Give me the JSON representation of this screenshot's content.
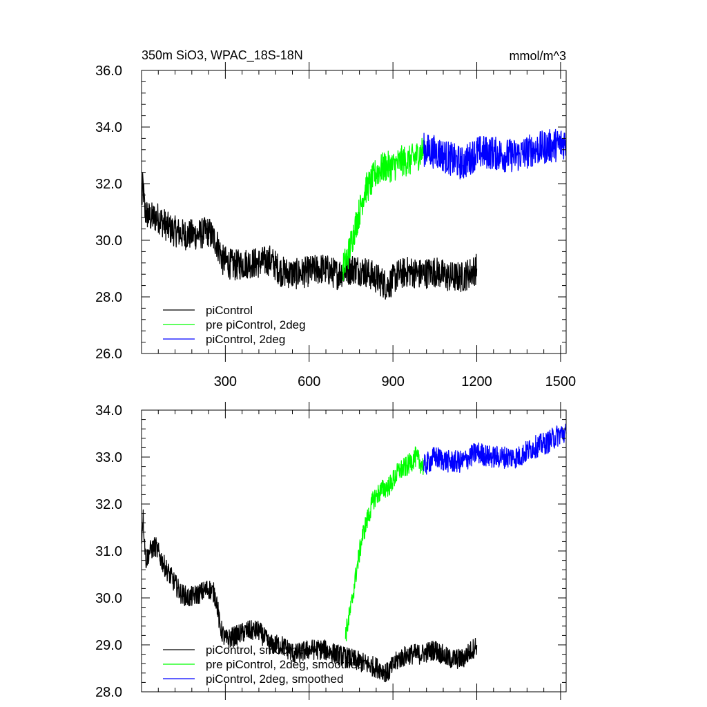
{
  "chart_data": [
    {
      "type": "line",
      "title": "350m SiO3, WPAC_18S-18N",
      "units": "mmol/m^3",
      "xlabel": "",
      "ylabel": "",
      "xlim": [
        0,
        1520
      ],
      "ylim": [
        26.0,
        36.0
      ],
      "x_ticks": [
        300,
        600,
        900,
        1200,
        1500
      ],
      "x_tick_labels": [
        "300",
        "600",
        "900",
        "1200",
        "1500"
      ],
      "y_ticks": [
        26.0,
        28.0,
        30.0,
        32.0,
        34.0,
        36.0
      ],
      "y_tick_labels": [
        "26.0",
        "28.0",
        "30.0",
        "32.0",
        "34.0",
        "36.0"
      ],
      "legend": {
        "position": "bottom-left"
      },
      "series": [
        {
          "name": "piControl",
          "color": "#000000",
          "noise": 0.55,
          "points": [
            [
              1,
              31.3
            ],
            [
              5,
              32.0
            ],
            [
              12,
              31.0
            ],
            [
              30,
              30.8
            ],
            [
              60,
              30.8
            ],
            [
              100,
              30.4
            ],
            [
              150,
              30.2
            ],
            [
              200,
              30.2
            ],
            [
              240,
              30.3
            ],
            [
              270,
              29.9
            ],
            [
              290,
              29.3
            ],
            [
              330,
              29.1
            ],
            [
              380,
              29.2
            ],
            [
              420,
              29.2
            ],
            [
              460,
              29.3
            ],
            [
              500,
              28.9
            ],
            [
              550,
              28.8
            ],
            [
              600,
              28.9
            ],
            [
              650,
              29.0
            ],
            [
              700,
              28.8
            ],
            [
              720,
              28.9
            ],
            [
              760,
              29.0
            ],
            [
              800,
              28.9
            ],
            [
              850,
              28.6
            ],
            [
              880,
              28.4
            ],
            [
              920,
              28.8
            ],
            [
              960,
              28.9
            ],
            [
              1000,
              28.8
            ],
            [
              1050,
              28.9
            ],
            [
              1100,
              28.7
            ],
            [
              1150,
              28.7
            ],
            [
              1200,
              29.0
            ]
          ]
        },
        {
          "name": "pre piControl, 2deg",
          "color": "#00ff00",
          "noise": 0.55,
          "points": [
            [
              720,
              29.0
            ],
            [
              740,
              29.5
            ],
            [
              760,
              30.3
            ],
            [
              780,
              31.0
            ],
            [
              800,
              31.8
            ],
            [
              820,
              32.0
            ],
            [
              840,
              32.4
            ],
            [
              870,
              32.6
            ],
            [
              900,
              32.6
            ],
            [
              930,
              32.8
            ],
            [
              960,
              32.8
            ],
            [
              990,
              33.0
            ],
            [
              1010,
              33.2
            ]
          ]
        },
        {
          "name": "piControl, 2deg",
          "color": "#0000ff",
          "noise": 0.6,
          "points": [
            [
              1010,
              33.2
            ],
            [
              1060,
              33.1
            ],
            [
              1100,
              32.9
            ],
            [
              1150,
              32.7
            ],
            [
              1200,
              33.1
            ],
            [
              1250,
              33.1
            ],
            [
              1300,
              33.0
            ],
            [
              1350,
              33.0
            ],
            [
              1400,
              33.2
            ],
            [
              1450,
              33.3
            ],
            [
              1500,
              33.4
            ],
            [
              1520,
              33.5
            ]
          ]
        }
      ]
    },
    {
      "type": "line",
      "title": "",
      "xlabel": "",
      "ylabel": "",
      "xlim": [
        0,
        1520
      ],
      "ylim": [
        28.0,
        34.0
      ],
      "x_ticks": [
        300,
        600,
        900,
        1200,
        1500
      ],
      "x_tick_labels": [],
      "y_ticks": [
        28.0,
        29.0,
        30.0,
        31.0,
        32.0,
        33.0,
        34.0
      ],
      "y_tick_labels": [
        "28.0",
        "29.0",
        "30.0",
        "31.0",
        "32.0",
        "33.0",
        "34.0"
      ],
      "legend": {
        "position": "bottom-left"
      },
      "series": [
        {
          "name": "piControl, smoothed",
          "color": "#000000",
          "noise": 0.22,
          "points": [
            [
              1,
              31.3
            ],
            [
              5,
              31.8
            ],
            [
              15,
              30.8
            ],
            [
              30,
              31.0
            ],
            [
              50,
              31.1
            ],
            [
              80,
              30.7
            ],
            [
              110,
              30.4
            ],
            [
              140,
              30.1
            ],
            [
              170,
              30.0
            ],
            [
              210,
              30.1
            ],
            [
              240,
              30.2
            ],
            [
              260,
              30.1
            ],
            [
              270,
              29.9
            ],
            [
              280,
              29.4
            ],
            [
              300,
              29.1
            ],
            [
              340,
              29.2
            ],
            [
              380,
              29.3
            ],
            [
              420,
              29.3
            ],
            [
              460,
              29.0
            ],
            [
              500,
              29.0
            ],
            [
              550,
              28.8
            ],
            [
              600,
              28.9
            ],
            [
              650,
              28.9
            ],
            [
              700,
              28.8
            ],
            [
              750,
              28.7
            ],
            [
              800,
              28.6
            ],
            [
              850,
              28.5
            ],
            [
              880,
              28.4
            ],
            [
              920,
              28.7
            ],
            [
              960,
              28.8
            ],
            [
              1000,
              28.8
            ],
            [
              1050,
              28.9
            ],
            [
              1100,
              28.7
            ],
            [
              1150,
              28.7
            ],
            [
              1200,
              29.0
            ]
          ]
        },
        {
          "name": "pre piControl, 2deg, smoothed",
          "color": "#00ff00",
          "noise": 0.22,
          "points": [
            [
              730,
              29.2
            ],
            [
              750,
              29.8
            ],
            [
              770,
              30.6
            ],
            [
              790,
              31.3
            ],
            [
              810,
              31.7
            ],
            [
              830,
              32.1
            ],
            [
              860,
              32.3
            ],
            [
              890,
              32.4
            ],
            [
              920,
              32.7
            ],
            [
              950,
              32.8
            ],
            [
              980,
              33.0
            ],
            [
              1010,
              32.8
            ]
          ]
        },
        {
          "name": "piControl, 2deg, smoothed",
          "color": "#0000ff",
          "noise": 0.24,
          "points": [
            [
              1010,
              32.8
            ],
            [
              1050,
              33.0
            ],
            [
              1100,
              32.9
            ],
            [
              1150,
              32.9
            ],
            [
              1200,
              33.1
            ],
            [
              1250,
              33.0
            ],
            [
              1300,
              33.0
            ],
            [
              1350,
              33.0
            ],
            [
              1400,
              33.2
            ],
            [
              1450,
              33.3
            ],
            [
              1500,
              33.5
            ],
            [
              1520,
              33.5
            ]
          ]
        }
      ]
    }
  ]
}
